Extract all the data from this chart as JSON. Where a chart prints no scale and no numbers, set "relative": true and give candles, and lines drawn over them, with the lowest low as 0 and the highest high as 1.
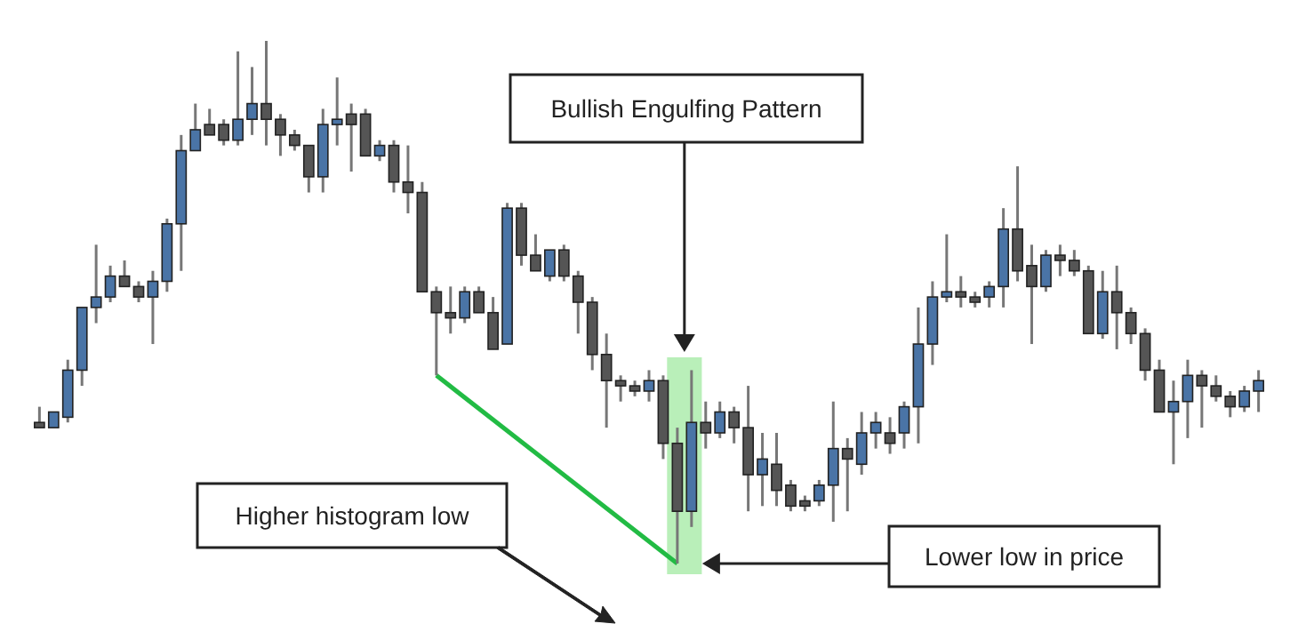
{
  "chart_data": {
    "type": "candlestick",
    "relative": true,
    "categories": [
      null,
      null,
      null,
      null,
      null,
      null,
      null,
      null,
      null,
      null,
      null,
      null,
      null,
      null,
      null,
      null,
      null,
      null,
      null,
      null,
      null,
      null,
      null,
      null,
      null,
      null,
      null,
      null,
      null,
      null,
      null,
      null,
      null,
      null,
      null,
      null,
      null,
      null,
      null,
      null,
      null,
      null,
      null,
      null,
      null,
      null,
      null,
      null,
      null,
      null,
      null,
      null,
      null,
      null,
      null,
      null,
      null,
      null,
      null,
      null,
      null,
      null,
      null,
      null,
      null,
      null,
      null,
      null,
      null,
      null,
      null,
      null,
      null,
      null,
      null,
      null,
      null,
      null,
      null,
      null,
      null,
      null,
      null,
      null,
      null,
      null,
      null
    ],
    "ohlc": [
      [
        0.27,
        0.3,
        0.26,
        0.26
      ],
      [
        0.26,
        0.29,
        0.26,
        0.29
      ],
      [
        0.28,
        0.39,
        0.27,
        0.37
      ],
      [
        0.37,
        0.49,
        0.34,
        0.49
      ],
      [
        0.49,
        0.61,
        0.46,
        0.51
      ],
      [
        0.51,
        0.57,
        0.5,
        0.55
      ],
      [
        0.55,
        0.58,
        0.53,
        0.53
      ],
      [
        0.53,
        0.54,
        0.5,
        0.51
      ],
      [
        0.51,
        0.56,
        0.42,
        0.54
      ],
      [
        0.54,
        0.66,
        0.52,
        0.65
      ],
      [
        0.65,
        0.82,
        0.56,
        0.79
      ],
      [
        0.79,
        0.88,
        0.79,
        0.83
      ],
      [
        0.84,
        0.87,
        0.82,
        0.82
      ],
      [
        0.84,
        0.85,
        0.8,
        0.81
      ],
      [
        0.81,
        0.98,
        0.8,
        0.85
      ],
      [
        0.85,
        0.95,
        0.82,
        0.88
      ],
      [
        0.88,
        1,
        0.8,
        0.85
      ],
      [
        0.85,
        0.86,
        0.78,
        0.82
      ],
      [
        0.82,
        0.83,
        0.79,
        0.8
      ],
      [
        0.8,
        0.8,
        0.71,
        0.74
      ],
      [
        0.74,
        0.87,
        0.71,
        0.84
      ],
      [
        0.84,
        0.93,
        0.8,
        0.85
      ],
      [
        0.86,
        0.88,
        0.75,
        0.84
      ],
      [
        0.86,
        0.87,
        0.78,
        0.78
      ],
      [
        0.78,
        0.81,
        0.77,
        0.8
      ],
      [
        0.8,
        0.81,
        0.71,
        0.73
      ],
      [
        0.73,
        0.8,
        0.67,
        0.71
      ],
      [
        0.71,
        0.73,
        0.52,
        0.52
      ],
      [
        0.52,
        0.53,
        0.36,
        0.48
      ],
      [
        0.48,
        0.53,
        0.44,
        0.47
      ],
      [
        0.47,
        0.53,
        0.46,
        0.52
      ],
      [
        0.52,
        0.53,
        0.48,
        0.48
      ],
      [
        0.48,
        0.51,
        0.41,
        0.41
      ],
      [
        0.42,
        0.69,
        0.42,
        0.68
      ],
      [
        0.68,
        0.69,
        0.57,
        0.59
      ],
      [
        0.59,
        0.63,
        0.56,
        0.56
      ],
      [
        0.55,
        0.6,
        0.54,
        0.6
      ],
      [
        0.6,
        0.61,
        0.54,
        0.55
      ],
      [
        0.55,
        0.56,
        0.44,
        0.5
      ],
      [
        0.5,
        0.51,
        0.37,
        0.4
      ],
      [
        0.4,
        0.44,
        0.26,
        0.35
      ],
      [
        0.35,
        0.36,
        0.31,
        0.34
      ],
      [
        0.34,
        0.35,
        0.32,
        0.33
      ],
      [
        0.33,
        0.37,
        0.31,
        0.35
      ],
      [
        0.35,
        0.36,
        0.2,
        0.23
      ],
      [
        0.23,
        0.26,
        0,
        0.1
      ],
      [
        0.1,
        0.37,
        0.07,
        0.27
      ],
      [
        0.27,
        0.31,
        0.22,
        0.25
      ],
      [
        0.25,
        0.31,
        0.24,
        0.29
      ],
      [
        0.29,
        0.3,
        0.23,
        0.26
      ],
      [
        0.26,
        0.34,
        0.1,
        0.17
      ],
      [
        0.17,
        0.25,
        0.11,
        0.2
      ],
      [
        0.19,
        0.25,
        0.11,
        0.14
      ],
      [
        0.15,
        0.16,
        0.1,
        0.11
      ],
      [
        0.12,
        0.13,
        0.1,
        0.11
      ],
      [
        0.12,
        0.16,
        0.11,
        0.15
      ],
      [
        0.15,
        0.31,
        0.08,
        0.22
      ],
      [
        0.22,
        0.24,
        0.1,
        0.2
      ],
      [
        0.19,
        0.29,
        0.17,
        0.25
      ],
      [
        0.25,
        0.29,
        0.22,
        0.27
      ],
      [
        0.25,
        0.28,
        0.21,
        0.23
      ],
      [
        0.25,
        0.31,
        0.22,
        0.3
      ],
      [
        0.3,
        0.49,
        0.23,
        0.42
      ],
      [
        0.42,
        0.54,
        0.38,
        0.51
      ],
      [
        0.51,
        0.63,
        0.5,
        0.52
      ],
      [
        0.52,
        0.55,
        0.49,
        0.51
      ],
      [
        0.51,
        0.52,
        0.49,
        0.5
      ],
      [
        0.51,
        0.54,
        0.49,
        0.53
      ],
      [
        0.53,
        0.68,
        0.49,
        0.64
      ],
      [
        0.64,
        0.76,
        0.54,
        0.56
      ],
      [
        0.57,
        0.61,
        0.42,
        0.53
      ],
      [
        0.53,
        0.6,
        0.52,
        0.59
      ],
      [
        0.59,
        0.61,
        0.55,
        0.58
      ],
      [
        0.58,
        0.6,
        0.55,
        0.56
      ],
      [
        0.56,
        0.57,
        0.44,
        0.44
      ],
      [
        0.44,
        0.56,
        0.43,
        0.52
      ],
      [
        0.52,
        0.57,
        0.41,
        0.48
      ],
      [
        0.48,
        0.49,
        0.42,
        0.44
      ],
      [
        0.44,
        0.45,
        0.35,
        0.37
      ],
      [
        0.37,
        0.39,
        0.29,
        0.29
      ],
      [
        0.29,
        0.35,
        0.19,
        0.31
      ],
      [
        0.31,
        0.39,
        0.24,
        0.36
      ],
      [
        0.36,
        0.37,
        0.26,
        0.34
      ],
      [
        0.34,
        0.36,
        0.31,
        0.32
      ],
      [
        0.32,
        0.33,
        0.28,
        0.3
      ],
      [
        0.3,
        0.34,
        0.29,
        0.33
      ],
      [
        0.33,
        0.37,
        0.29,
        0.35
      ]
    ],
    "colors": [
      "#555555",
      "#4a74a6",
      "#4a74a6",
      "#4a74a6",
      "#4a74a6",
      "#4a74a6",
      "#555555",
      "#555555",
      "#4a74a6",
      "#4a74a6",
      "#4a74a6",
      "#4a74a6",
      "#555555",
      "#555555",
      "#4a74a6",
      "#4a74a6",
      "#555555",
      "#555555",
      "#555555",
      "#555555",
      "#4a74a6",
      "#4a74a6",
      "#555555",
      "#555555",
      "#4a74a6",
      "#555555",
      "#555555",
      "#555555",
      "#555555",
      "#555555",
      "#4a74a6",
      "#555555",
      "#555555",
      "#4a74a6",
      "#555555",
      "#555555",
      "#4a74a6",
      "#555555",
      "#555555",
      "#555555",
      "#555555",
      "#555555",
      "#555555",
      "#4a74a6",
      "#555555",
      "#555555",
      "#4a74a6",
      "#555555",
      "#4a74a6",
      "#555555",
      "#555555",
      "#4a74a6",
      "#555555",
      "#555555",
      "#555555",
      "#4a74a6",
      "#4a74a6",
      "#555555",
      "#4a74a6",
      "#4a74a6",
      "#555555",
      "#4a74a6",
      "#4a74a6",
      "#4a74a6",
      "#4a74a6",
      "#555555",
      "#555555",
      "#4a74a6",
      "#4a74a6",
      "#555555",
      "#555555",
      "#4a74a6",
      "#555555",
      "#555555",
      "#555555",
      "#4a74a6",
      "#555555",
      "#555555",
      "#555555",
      "#555555",
      "#4a74a6",
      "#4a74a6",
      "#555555",
      "#555555",
      "#555555",
      "#4a74a6",
      "#4a74a6"
    ],
    "series": [
      {
        "type": "line",
        "color": "#22bb44",
        "values": [
          null,
          null,
          null,
          null,
          null,
          null,
          null,
          null,
          null,
          null,
          null,
          null,
          null,
          null,
          null,
          null,
          null,
          null,
          null,
          null,
          null,
          null,
          null,
          null,
          null,
          null,
          null,
          null,
          0.36,
          null,
          null,
          null,
          null,
          null,
          null,
          null,
          null,
          null,
          null,
          null,
          null,
          null,
          null,
          null,
          null,
          0,
          null,
          null,
          null,
          null,
          null,
          null,
          null,
          null,
          null,
          null,
          null,
          null,
          null,
          null,
          null,
          null,
          null,
          null,
          null,
          null,
          null,
          null,
          null,
          null,
          null,
          null,
          null,
          null,
          null,
          null,
          null,
          null,
          null,
          null,
          null,
          null,
          null,
          null,
          null,
          null,
          null
        ]
      }
    ],
    "annotations": [
      "Bullish Engulfing Pattern",
      "Higher histogram low",
      "Lower low in price"
    ]
  }
}
